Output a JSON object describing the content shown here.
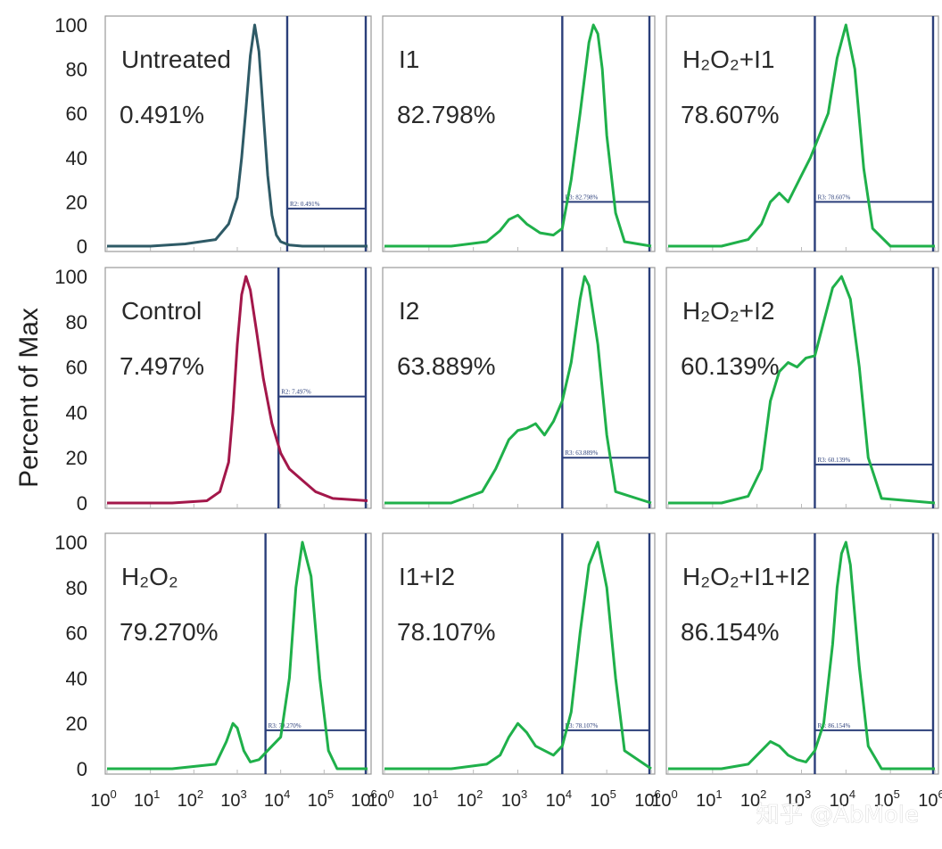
{
  "chart_data": {
    "type": "line",
    "y_axis_label": "Percent of Max",
    "y_ticks": [
      "100",
      "80",
      "60",
      "40",
      "20",
      "0"
    ],
    "x_tick_labels": [
      {
        "base": "10",
        "exp": "0"
      },
      {
        "base": "10",
        "exp": "1"
      },
      {
        "base": "10",
        "exp": "2"
      },
      {
        "base": "10",
        "exp": "3"
      },
      {
        "base": "10",
        "exp": "4"
      },
      {
        "base": "10",
        "exp": "5"
      },
      {
        "base": "10",
        "exp": "6"
      }
    ],
    "x_scale": "log10",
    "xlim_log": [
      0,
      6
    ],
    "ylim": [
      0,
      100
    ],
    "panels": [
      {
        "id": "untreated",
        "label": "Untreated",
        "percent": "0.491%",
        "gate_label": "R2: 0.491%",
        "color": "#2e5a66",
        "gate": {
          "x_from_log": 4.15,
          "x_to_log": 6.0,
          "y": 17
        },
        "x_log": [
          0,
          1.0,
          1.8,
          2.5,
          2.8,
          3.0,
          3.1,
          3.2,
          3.3,
          3.4,
          3.5,
          3.6,
          3.7,
          3.8,
          3.9,
          4.0,
          4.2,
          4.5,
          5.0,
          6.0
        ],
        "y": [
          0,
          0,
          1,
          3,
          10,
          22,
          40,
          62,
          86,
          100,
          88,
          60,
          32,
          14,
          5,
          2,
          0.5,
          0,
          0,
          0
        ]
      },
      {
        "id": "i1",
        "label": "I1",
        "percent": "82.798%",
        "gate_label": "R3: 82.798%",
        "color": "#1fb04a",
        "gate": {
          "x_from_log": 4.0,
          "x_to_log": 6.0,
          "y": 20
        },
        "x_log": [
          0,
          1.5,
          2.3,
          2.6,
          2.8,
          3.0,
          3.2,
          3.5,
          3.8,
          4.0,
          4.2,
          4.4,
          4.6,
          4.7,
          4.8,
          4.9,
          5.0,
          5.2,
          5.4,
          6.0
        ],
        "y": [
          0,
          0,
          2,
          7,
          12,
          14,
          10,
          6,
          5,
          8,
          30,
          60,
          92,
          100,
          96,
          80,
          50,
          15,
          2,
          0
        ]
      },
      {
        "id": "h2o2_i1",
        "label": "H₂O₂+I1",
        "percent": "78.607%",
        "gate_label": "R3: 78.607%",
        "color": "#1fb04a",
        "gate": {
          "x_from_log": 3.3,
          "x_to_log": 6.0,
          "y": 20
        },
        "x_log": [
          0,
          1.2,
          1.8,
          2.1,
          2.3,
          2.5,
          2.7,
          2.85,
          3.0,
          3.2,
          3.4,
          3.6,
          3.8,
          4.0,
          4.2,
          4.4,
          4.6,
          5.0,
          6.0
        ],
        "y": [
          0,
          0,
          3,
          10,
          20,
          24,
          20,
          26,
          32,
          40,
          50,
          60,
          85,
          100,
          80,
          35,
          8,
          0,
          0
        ]
      },
      {
        "id": "control",
        "label": "Control",
        "percent": "7.497%",
        "gate_label": "R2: 7.497%",
        "color": "#a3174a",
        "gate": {
          "x_from_log": 3.95,
          "x_to_log": 6.0,
          "y": 47
        },
        "x_log": [
          0,
          1.5,
          2.3,
          2.6,
          2.8,
          2.9,
          3.0,
          3.1,
          3.2,
          3.3,
          3.45,
          3.6,
          3.8,
          4.0,
          4.2,
          4.5,
          4.8,
          5.2,
          6.0
        ],
        "y": [
          0,
          0,
          1,
          5,
          18,
          40,
          70,
          92,
          100,
          94,
          75,
          55,
          35,
          22,
          15,
          10,
          5,
          2,
          1
        ]
      },
      {
        "id": "i2",
        "label": "I2",
        "percent": "63.889%",
        "gate_label": "R3: 63.889%",
        "color": "#1fb04a",
        "gate": {
          "x_from_log": 4.0,
          "x_to_log": 6.0,
          "y": 20
        },
        "x_log": [
          0,
          1.5,
          2.2,
          2.5,
          2.8,
          3.0,
          3.2,
          3.4,
          3.6,
          3.8,
          4.0,
          4.2,
          4.4,
          4.5,
          4.6,
          4.8,
          5.0,
          5.2,
          6.0
        ],
        "y": [
          0,
          0,
          5,
          15,
          28,
          32,
          33,
          35,
          30,
          36,
          45,
          62,
          90,
          100,
          96,
          70,
          30,
          5,
          0
        ]
      },
      {
        "id": "h2o2_i2",
        "label": "H₂O₂+I2",
        "percent": "60.139%",
        "gate_label": "R3: 60.139%",
        "color": "#1fb04a",
        "gate": {
          "x_from_log": 3.3,
          "x_to_log": 6.0,
          "y": 17
        },
        "x_log": [
          0,
          1.2,
          1.8,
          2.1,
          2.3,
          2.5,
          2.7,
          2.9,
          3.1,
          3.3,
          3.5,
          3.7,
          3.9,
          4.1,
          4.3,
          4.5,
          4.8,
          6.0
        ],
        "y": [
          0,
          0,
          3,
          15,
          45,
          58,
          62,
          60,
          64,
          65,
          80,
          95,
          100,
          90,
          60,
          20,
          2,
          0
        ]
      },
      {
        "id": "h2o2",
        "label": "H₂O₂",
        "percent": "79.270%",
        "gate_label": "R3: 79.270%",
        "color": "#1fb04a",
        "gate": {
          "x_from_log": 3.65,
          "x_to_log": 6.0,
          "y": 17
        },
        "x_log": [
          0,
          1.5,
          2.5,
          2.75,
          2.9,
          3.0,
          3.15,
          3.3,
          3.5,
          3.8,
          4.0,
          4.2,
          4.35,
          4.5,
          4.7,
          4.9,
          5.1,
          5.3,
          6.0
        ],
        "y": [
          0,
          0,
          2,
          12,
          20,
          18,
          8,
          3,
          4,
          10,
          14,
          40,
          80,
          100,
          85,
          40,
          8,
          0,
          0
        ]
      },
      {
        "id": "i1_i2",
        "label": "I1+I2",
        "percent": "78.107%",
        "gate_label": "R3: 78.107%",
        "color": "#1fb04a",
        "gate": {
          "x_from_log": 4.0,
          "x_to_log": 6.0,
          "y": 17
        },
        "x_log": [
          0,
          1.5,
          2.3,
          2.6,
          2.8,
          3.0,
          3.2,
          3.4,
          3.6,
          3.8,
          4.0,
          4.2,
          4.4,
          4.6,
          4.8,
          5.0,
          5.2,
          5.4,
          6.0
        ],
        "y": [
          0,
          0,
          2,
          6,
          14,
          20,
          16,
          10,
          8,
          6,
          10,
          25,
          60,
          90,
          100,
          80,
          40,
          8,
          0
        ]
      },
      {
        "id": "h2o2_i1_i2",
        "label": "H₂O₂+I1+I2",
        "percent": "86.154%",
        "gate_label": "R3: 86.154%",
        "color": "#1fb04a",
        "gate": {
          "x_from_log": 3.3,
          "x_to_log": 6.0,
          "y": 17
        },
        "x_log": [
          0,
          1.2,
          1.8,
          2.1,
          2.3,
          2.5,
          2.7,
          2.9,
          3.1,
          3.3,
          3.5,
          3.7,
          3.8,
          3.9,
          4.0,
          4.1,
          4.3,
          4.5,
          4.8,
          6.0
        ],
        "y": [
          0,
          0,
          2,
          8,
          12,
          10,
          6,
          4,
          3,
          8,
          20,
          55,
          80,
          95,
          100,
          90,
          45,
          10,
          0,
          0
        ]
      }
    ]
  },
  "watermark": "知乎 @AbMole"
}
